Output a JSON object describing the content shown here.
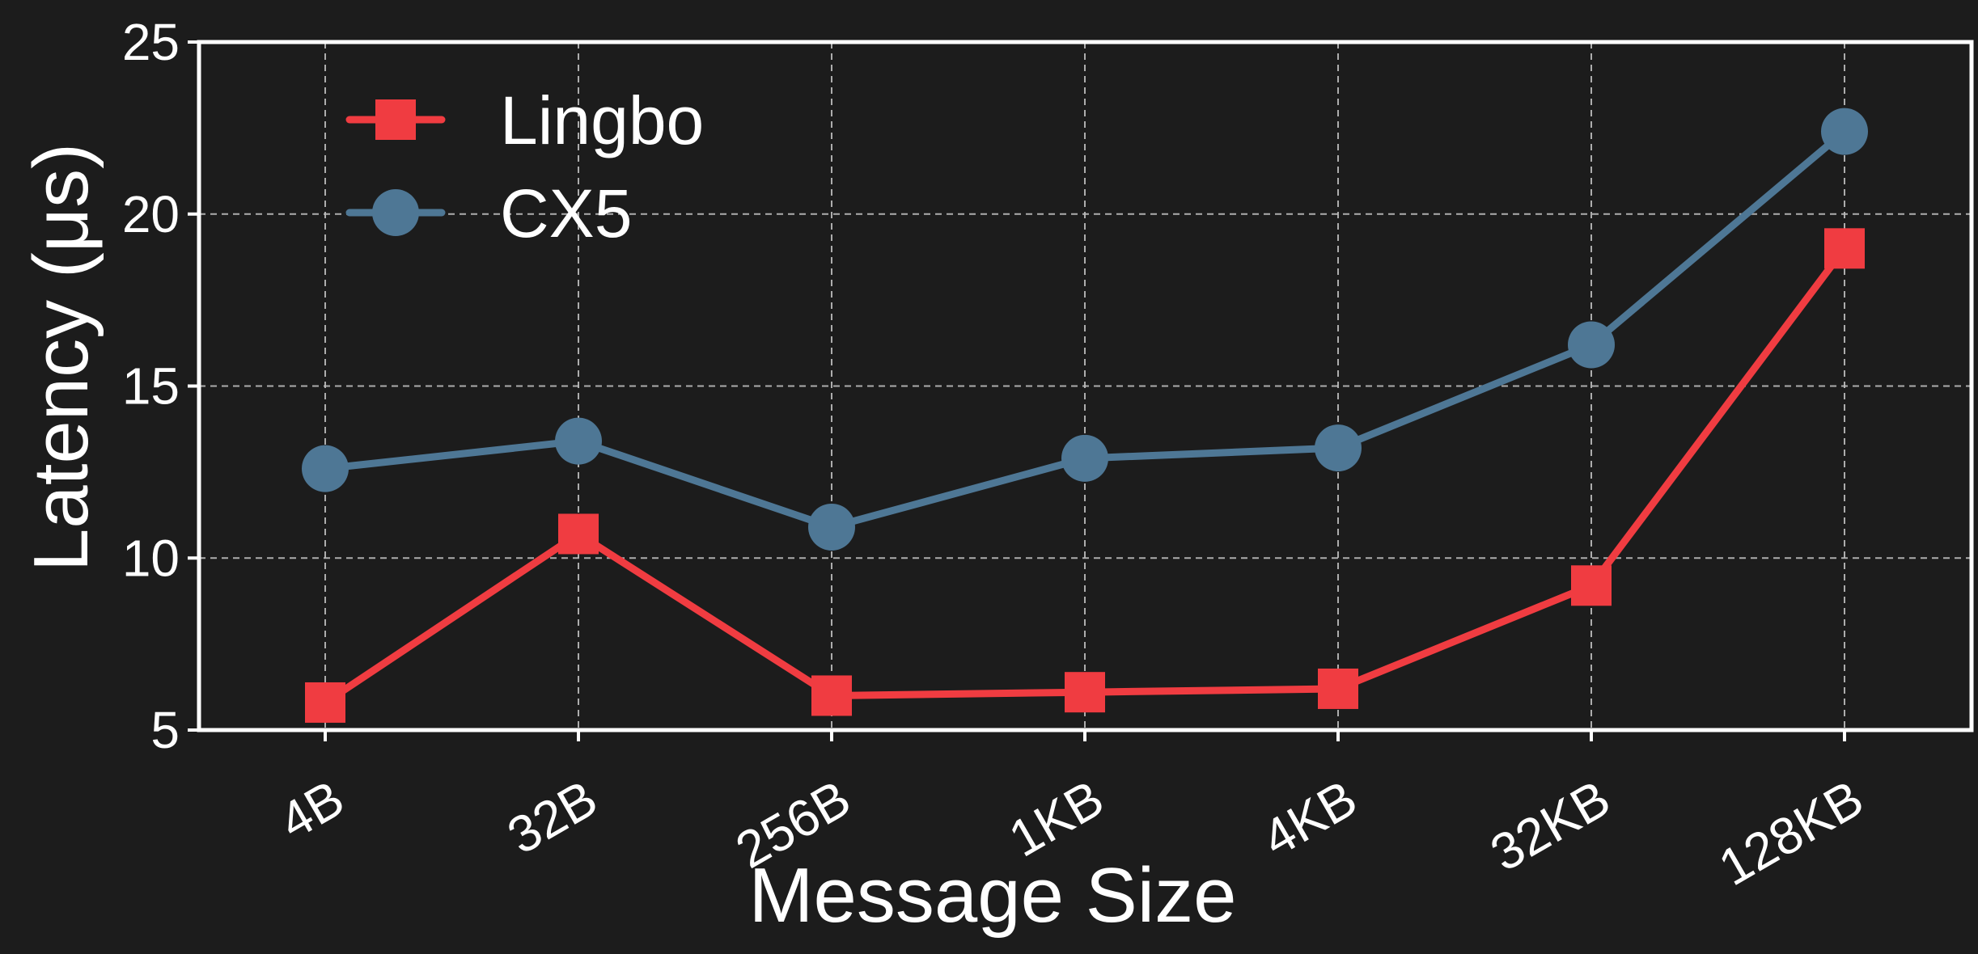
{
  "colors": {
    "background": "#1c1c1c",
    "axes_frame": "#ffffff",
    "grid": "#bdbdbd",
    "text": "#ffffff"
  },
  "chart_data": {
    "type": "line",
    "title": "",
    "xlabel": "Message Size",
    "ylabel": "Latency (μs)",
    "categories": [
      "4B",
      "32B",
      "256B",
      "1KB",
      "4KB",
      "32KB",
      "128KB"
    ],
    "ylim": [
      5,
      25
    ],
    "yticks": [
      5,
      10,
      15,
      20,
      25
    ],
    "grid": true,
    "legend_position": "upper-left",
    "series": [
      {
        "name": "Lingbo",
        "color": "#f03c41",
        "marker": "square",
        "values": [
          5.8,
          10.7,
          6.0,
          6.1,
          6.2,
          9.2,
          19.0
        ]
      },
      {
        "name": "CX5",
        "color": "#4e7795",
        "marker": "circle",
        "values": [
          12.6,
          13.4,
          10.9,
          12.9,
          13.2,
          16.2,
          22.4
        ]
      }
    ]
  }
}
